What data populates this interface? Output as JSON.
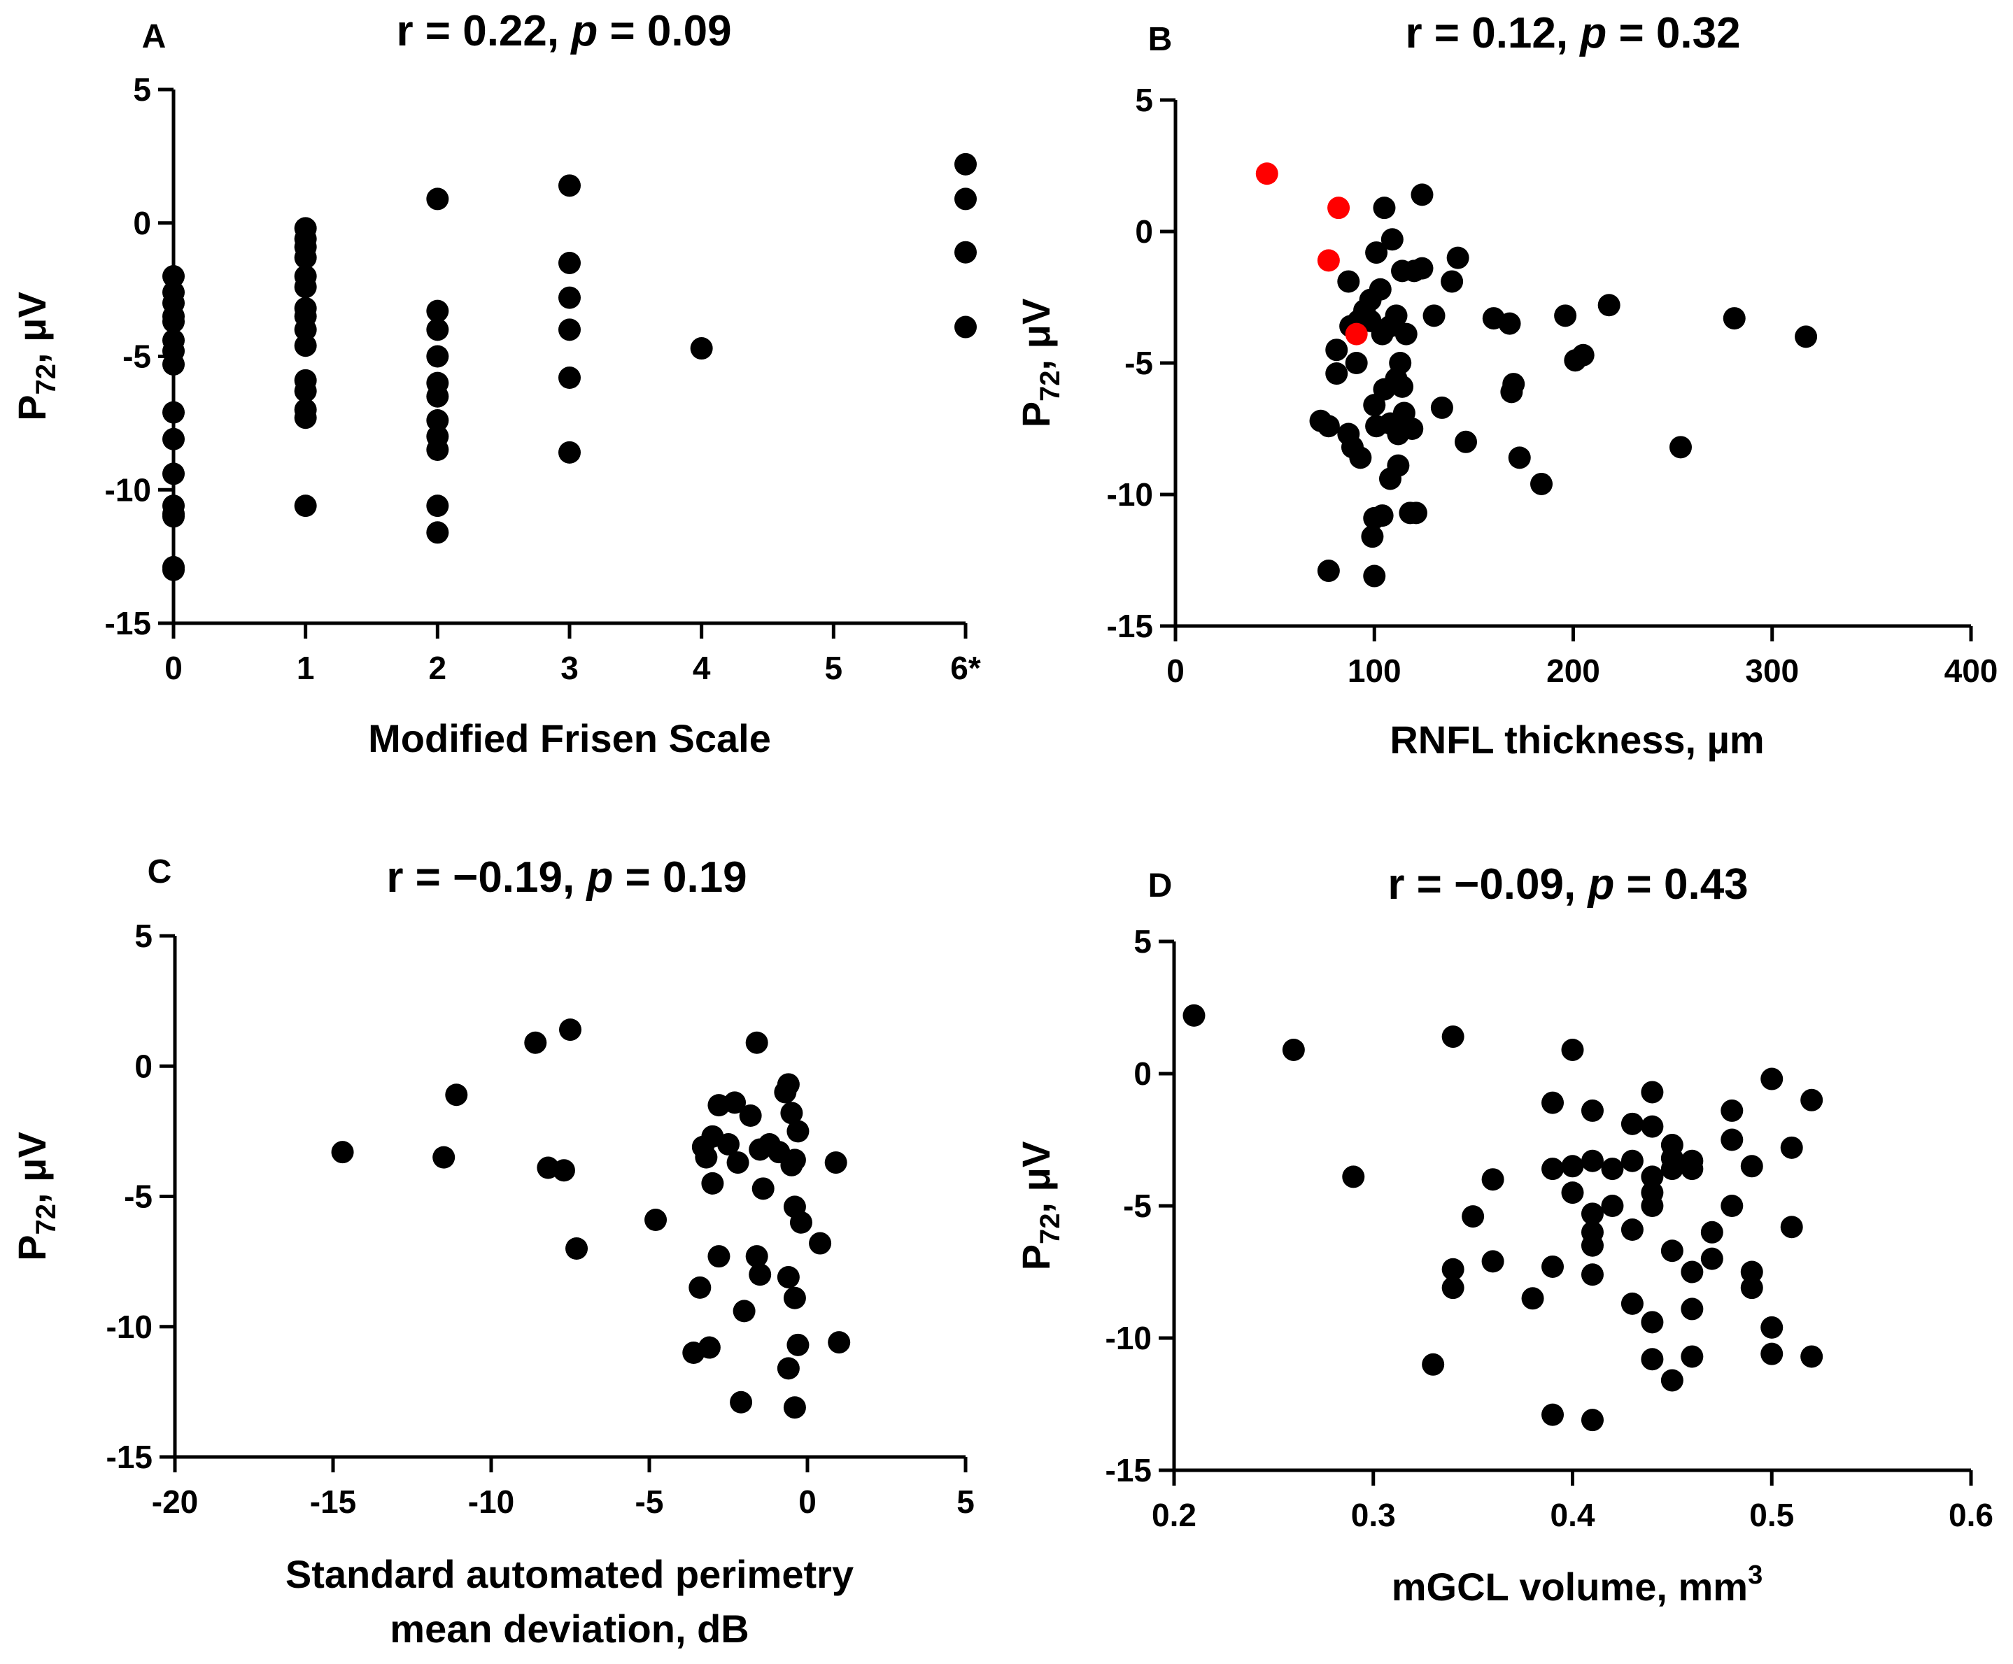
{
  "chart_data": [
    {
      "panel_label": "A",
      "type": "scatter",
      "title": {
        "r": "r = 0.22, ",
        "p_label": "p",
        "p_value": " = 0.09"
      },
      "xlabel": [
        "Modified Frisen Scale"
      ],
      "ylabel": {
        "main": "P",
        "sub": "72",
        "unit": ", μV"
      },
      "xlim": [
        0,
        6
      ],
      "ylim": [
        -15,
        5
      ],
      "xticks": [
        0,
        1,
        2,
        3,
        4,
        5,
        6
      ],
      "xtick_labels": [
        "0",
        "1",
        "2",
        "3",
        "4",
        "5",
        "6*"
      ],
      "yticks": [
        -15,
        -10,
        -5,
        0,
        5
      ],
      "ytick_labels": [
        "-15",
        "-10",
        "-5",
        "0",
        "5"
      ],
      "series": [
        {
          "color": "#000000",
          "points": [
            [
              0,
              -2.0
            ],
            [
              0,
              -2.6
            ],
            [
              0,
              -3.0
            ],
            [
              0,
              -3.5
            ],
            [
              0,
              -3.7
            ],
            [
              0,
              -4.4
            ],
            [
              0,
              -4.8
            ],
            [
              0,
              -5.3
            ],
            [
              0,
              -7.1
            ],
            [
              0,
              -8.1
            ],
            [
              0,
              -9.4
            ],
            [
              0,
              -10.6
            ],
            [
              0,
              -10.9
            ],
            [
              0,
              -11.0
            ],
            [
              0,
              -12.9
            ],
            [
              0,
              -13.0
            ],
            [
              1,
              -0.2
            ],
            [
              1,
              -0.6
            ],
            [
              1,
              -0.9
            ],
            [
              1,
              -1.3
            ],
            [
              1,
              -2.0
            ],
            [
              1,
              -2.4
            ],
            [
              1,
              -3.2
            ],
            [
              1,
              -3.5
            ],
            [
              1,
              -4.0
            ],
            [
              1,
              -4.6
            ],
            [
              1,
              -5.9
            ],
            [
              1,
              -6.3
            ],
            [
              1,
              -7.0
            ],
            [
              1,
              -7.3
            ],
            [
              1,
              -10.6
            ],
            [
              2,
              0.9
            ],
            [
              2,
              -3.3
            ],
            [
              2,
              -4.0
            ],
            [
              2,
              -5.0
            ],
            [
              2,
              -6.0
            ],
            [
              2,
              -6.5
            ],
            [
              2,
              -7.4
            ],
            [
              2,
              -8.0
            ],
            [
              2,
              -8.5
            ],
            [
              2,
              -10.6
            ],
            [
              2,
              -11.6
            ],
            [
              3,
              1.4
            ],
            [
              3,
              -1.5
            ],
            [
              3,
              -2.8
            ],
            [
              3,
              -4.0
            ],
            [
              3,
              -5.8
            ],
            [
              3,
              -8.6
            ],
            [
              4,
              -4.7
            ],
            [
              6,
              2.2
            ],
            [
              6,
              0.9
            ],
            [
              6,
              -1.1
            ],
            [
              6,
              -3.9
            ]
          ]
        }
      ]
    },
    {
      "panel_label": "B",
      "type": "scatter",
      "title": {
        "r": "r = 0.12, ",
        "p_label": "p",
        "p_value": " = 0.32"
      },
      "xlabel": [
        "RNFL thickness, µm"
      ],
      "ylabel": {
        "main": "P",
        "sub": "72",
        "unit": ", μV"
      },
      "xlim": [
        0,
        400
      ],
      "ylim": [
        -15,
        5
      ],
      "xticks": [
        0,
        100,
        200,
        300,
        400
      ],
      "xtick_labels": [
        "0",
        "100",
        "200",
        "300",
        "400"
      ],
      "yticks": [
        -15,
        -10,
        -5,
        0,
        5
      ],
      "ytick_labels": [
        "-15",
        "-10",
        "-5",
        "0",
        "5"
      ],
      "series": [
        {
          "color": "#000000",
          "points": [
            [
              105,
              0.9
            ],
            [
              109,
              -0.3
            ],
            [
              101,
              -0.8
            ],
            [
              124,
              1.4
            ],
            [
              142,
              -1.0
            ],
            [
              139,
              -1.9
            ],
            [
              120,
              -1.5
            ],
            [
              124,
              -1.4
            ],
            [
              114,
              -1.5
            ],
            [
              87,
              -1.9
            ],
            [
              98,
              -2.6
            ],
            [
              103,
              -2.2
            ],
            [
              95,
              -3.0
            ],
            [
              111,
              -3.2
            ],
            [
              130,
              -3.2
            ],
            [
              92,
              -3.4
            ],
            [
              88,
              -3.6
            ],
            [
              98,
              -3.4
            ],
            [
              108,
              -3.6
            ],
            [
              104,
              -3.9
            ],
            [
              116,
              -3.9
            ],
            [
              160,
              -3.3
            ],
            [
              168,
              -3.5
            ],
            [
              196,
              -3.2
            ],
            [
              218,
              -2.8
            ],
            [
              281,
              -3.3
            ],
            [
              317,
              -4.0
            ],
            [
              81,
              -4.5
            ],
            [
              91,
              -5.0
            ],
            [
              113,
              -5.0
            ],
            [
              111,
              -5.6
            ],
            [
              105,
              -6.0
            ],
            [
              114,
              -5.9
            ],
            [
              81,
              -5.4
            ],
            [
              170,
              -5.8
            ],
            [
              169,
              -6.1
            ],
            [
              201,
              -4.9
            ],
            [
              205,
              -4.7
            ],
            [
              100,
              -6.6
            ],
            [
              134,
              -6.7
            ],
            [
              115,
              -6.9
            ],
            [
              113,
              -7.2
            ],
            [
              73,
              -7.2
            ],
            [
              77,
              -7.4
            ],
            [
              87,
              -7.7
            ],
            [
              101,
              -7.4
            ],
            [
              108,
              -7.3
            ],
            [
              112,
              -7.7
            ],
            [
              119,
              -7.5
            ],
            [
              89,
              -8.2
            ],
            [
              93,
              -8.6
            ],
            [
              146,
              -8.0
            ],
            [
              112,
              -8.9
            ],
            [
              173,
              -8.6
            ],
            [
              254,
              -8.2
            ],
            [
              108,
              -9.4
            ],
            [
              184,
              -9.6
            ],
            [
              121,
              -10.7
            ],
            [
              118,
              -10.7
            ],
            [
              100,
              -10.9
            ],
            [
              104,
              -10.8
            ],
            [
              99,
              -11.6
            ],
            [
              77,
              -12.9
            ],
            [
              100,
              -13.1
            ]
          ]
        },
        {
          "color": "#ff0000",
          "points": [
            [
              46,
              2.2
            ],
            [
              82,
              0.9
            ],
            [
              77,
              -1.1
            ],
            [
              91,
              -3.9
            ]
          ]
        }
      ]
    },
    {
      "panel_label": "C",
      "type": "scatter",
      "title": {
        "r": "r = −0.19, ",
        "p_label": "p",
        "p_value": " = 0.19"
      },
      "xlabel": [
        "Standard automated perimetry",
        "mean deviation, dB"
      ],
      "ylabel": {
        "main": "P",
        "sub": "72",
        "unit": ", μV"
      },
      "xlim": [
        -20,
        5
      ],
      "ylim": [
        -15,
        5
      ],
      "xticks": [
        -20,
        -15,
        -10,
        -5,
        0,
        5
      ],
      "xtick_labels": [
        "-20",
        "-15",
        "-10",
        "-5",
        "0",
        "5"
      ],
      "yticks": [
        -15,
        -10,
        -5,
        0,
        5
      ],
      "ytick_labels": [
        "-15",
        "-10",
        "-5",
        "0",
        "5"
      ],
      "series": [
        {
          "color": "#000000",
          "points": [
            [
              -14.7,
              -3.3
            ],
            [
              -11.5,
              -3.5
            ],
            [
              -11.1,
              -1.1
            ],
            [
              -8.6,
              0.9
            ],
            [
              -7.5,
              1.4
            ],
            [
              -8.2,
              -3.9
            ],
            [
              -7.7,
              -4.0
            ],
            [
              -7.3,
              -7.0
            ],
            [
              -4.8,
              -5.9
            ],
            [
              -1.6,
              0.9
            ],
            [
              -0.7,
              -1.0
            ],
            [
              -0.6,
              -0.7
            ],
            [
              -2.8,
              -1.5
            ],
            [
              -2.3,
              -1.4
            ],
            [
              -3.0,
              -2.7
            ],
            [
              -3.3,
              -3.1
            ],
            [
              -3.2,
              -3.5
            ],
            [
              -2.5,
              -3.0
            ],
            [
              -1.8,
              -1.9
            ],
            [
              -0.5,
              -1.8
            ],
            [
              -1.2,
              -3.0
            ],
            [
              -0.9,
              -3.3
            ],
            [
              -0.3,
              -2.5
            ],
            [
              -0.5,
              -3.8
            ],
            [
              -2.2,
              -3.7
            ],
            [
              -1.5,
              -3.2
            ],
            [
              0.9,
              -3.7
            ],
            [
              -3.0,
              -4.5
            ],
            [
              -1.4,
              -4.7
            ],
            [
              -0.4,
              -3.6
            ],
            [
              -0.4,
              -5.4
            ],
            [
              -0.2,
              -6.0
            ],
            [
              0.4,
              -6.8
            ],
            [
              -2.8,
              -7.3
            ],
            [
              -1.6,
              -7.3
            ],
            [
              -1.5,
              -8.0
            ],
            [
              -0.6,
              -8.1
            ],
            [
              -3.4,
              -8.5
            ],
            [
              -0.4,
              -8.9
            ],
            [
              -2.0,
              -9.4
            ],
            [
              -3.6,
              -11.0
            ],
            [
              -3.1,
              -10.8
            ],
            [
              -0.3,
              -10.7
            ],
            [
              1.0,
              -10.6
            ],
            [
              -0.6,
              -11.6
            ],
            [
              -2.1,
              -12.9
            ],
            [
              -0.4,
              -13.1
            ]
          ]
        }
      ]
    },
    {
      "panel_label": "D",
      "type": "scatter",
      "title": {
        "r": "r = −0.09, ",
        "p_label": "p",
        "p_value": " = 0.43"
      },
      "xlabel": [
        "mGCL volume, mm",
        "3"
      ],
      "ylabel": {
        "main": "P",
        "sub": "72",
        "unit": ", μV"
      },
      "xlim": [
        0.2,
        0.6
      ],
      "ylim": [
        -15,
        5
      ],
      "xticks": [
        0.2,
        0.3,
        0.4,
        0.5,
        0.6
      ],
      "xtick_labels": [
        "0.2",
        "0.3",
        "0.4",
        "0.5",
        "0.6"
      ],
      "yticks": [
        -15,
        -10,
        -5,
        0,
        5
      ],
      "ytick_labels": [
        "-15",
        "-10",
        "-5",
        "0",
        "5"
      ],
      "series": [
        {
          "color": "#000000",
          "points": [
            [
              0.21,
              2.2
            ],
            [
              0.26,
              0.9
            ],
            [
              0.29,
              -3.9
            ],
            [
              0.34,
              1.4
            ],
            [
              0.4,
              0.9
            ],
            [
              0.5,
              -0.2
            ],
            [
              0.52,
              -1.0
            ],
            [
              0.44,
              -0.7
            ],
            [
              0.39,
              -1.1
            ],
            [
              0.41,
              -1.4
            ],
            [
              0.48,
              -1.4
            ],
            [
              0.43,
              -1.9
            ],
            [
              0.44,
              -2.0
            ],
            [
              0.48,
              -2.5
            ],
            [
              0.45,
              -2.7
            ],
            [
              0.51,
              -2.8
            ],
            [
              0.43,
              -3.3
            ],
            [
              0.45,
              -3.2
            ],
            [
              0.46,
              -3.3
            ],
            [
              0.39,
              -3.6
            ],
            [
              0.4,
              -3.5
            ],
            [
              0.41,
              -3.3
            ],
            [
              0.42,
              -3.6
            ],
            [
              0.44,
              -3.9
            ],
            [
              0.45,
              -3.6
            ],
            [
              0.46,
              -3.6
            ],
            [
              0.49,
              -3.5
            ],
            [
              0.36,
              -4.0
            ],
            [
              0.4,
              -4.5
            ],
            [
              0.42,
              -5.0
            ],
            [
              0.44,
              -4.5
            ],
            [
              0.44,
              -5.0
            ],
            [
              0.48,
              -5.0
            ],
            [
              0.41,
              -5.3
            ],
            [
              0.35,
              -5.4
            ],
            [
              0.51,
              -5.8
            ],
            [
              0.43,
              -5.9
            ],
            [
              0.41,
              -6.0
            ],
            [
              0.47,
              -6.0
            ],
            [
              0.41,
              -6.5
            ],
            [
              0.45,
              -6.7
            ],
            [
              0.47,
              -7.0
            ],
            [
              0.36,
              -7.1
            ],
            [
              0.34,
              -7.4
            ],
            [
              0.39,
              -7.3
            ],
            [
              0.41,
              -7.6
            ],
            [
              0.46,
              -7.5
            ],
            [
              0.49,
              -7.5
            ],
            [
              0.34,
              -8.1
            ],
            [
              0.49,
              -8.1
            ],
            [
              0.38,
              -8.5
            ],
            [
              0.43,
              -8.7
            ],
            [
              0.46,
              -8.9
            ],
            [
              0.44,
              -9.4
            ],
            [
              0.5,
              -9.6
            ],
            [
              0.5,
              -10.6
            ],
            [
              0.44,
              -10.8
            ],
            [
              0.46,
              -10.7
            ],
            [
              0.52,
              -10.7
            ],
            [
              0.33,
              -11.0
            ],
            [
              0.45,
              -11.6
            ],
            [
              0.39,
              -12.9
            ],
            [
              0.41,
              -13.1
            ]
          ]
        }
      ]
    }
  ]
}
